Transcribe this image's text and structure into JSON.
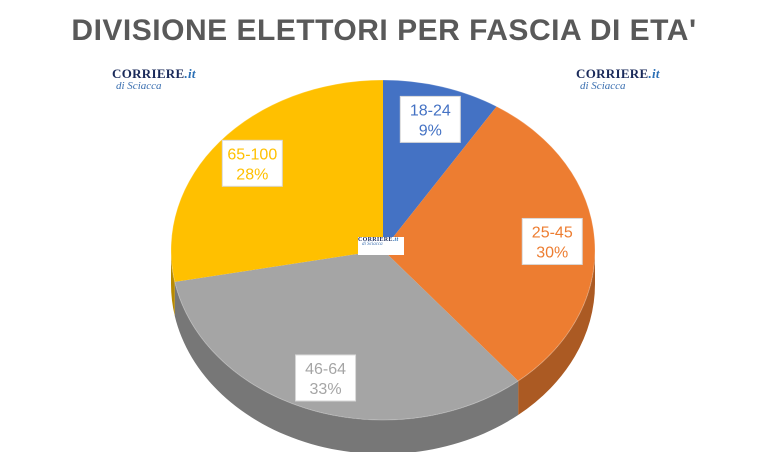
{
  "title": "DIVISIONE ELETTORI PER FASCIA DI ETA'",
  "logo": {
    "brand": "CORRIERE",
    "suffix": ".it",
    "sub": "di Sciacca"
  },
  "chart_data": {
    "type": "pie",
    "style": "3d",
    "title": "DIVISIONE ELETTORI PER FASCIA DI ETA'",
    "categories": [
      "18-24",
      "25-45",
      "46-64",
      "65-100"
    ],
    "values": [
      9,
      30,
      33,
      28
    ],
    "labels": [
      "9%",
      "30%",
      "33%",
      "28%"
    ],
    "colors": [
      "#4472c4",
      "#ed7d31",
      "#a5a5a5",
      "#ffc000"
    ],
    "legend": "none"
  }
}
